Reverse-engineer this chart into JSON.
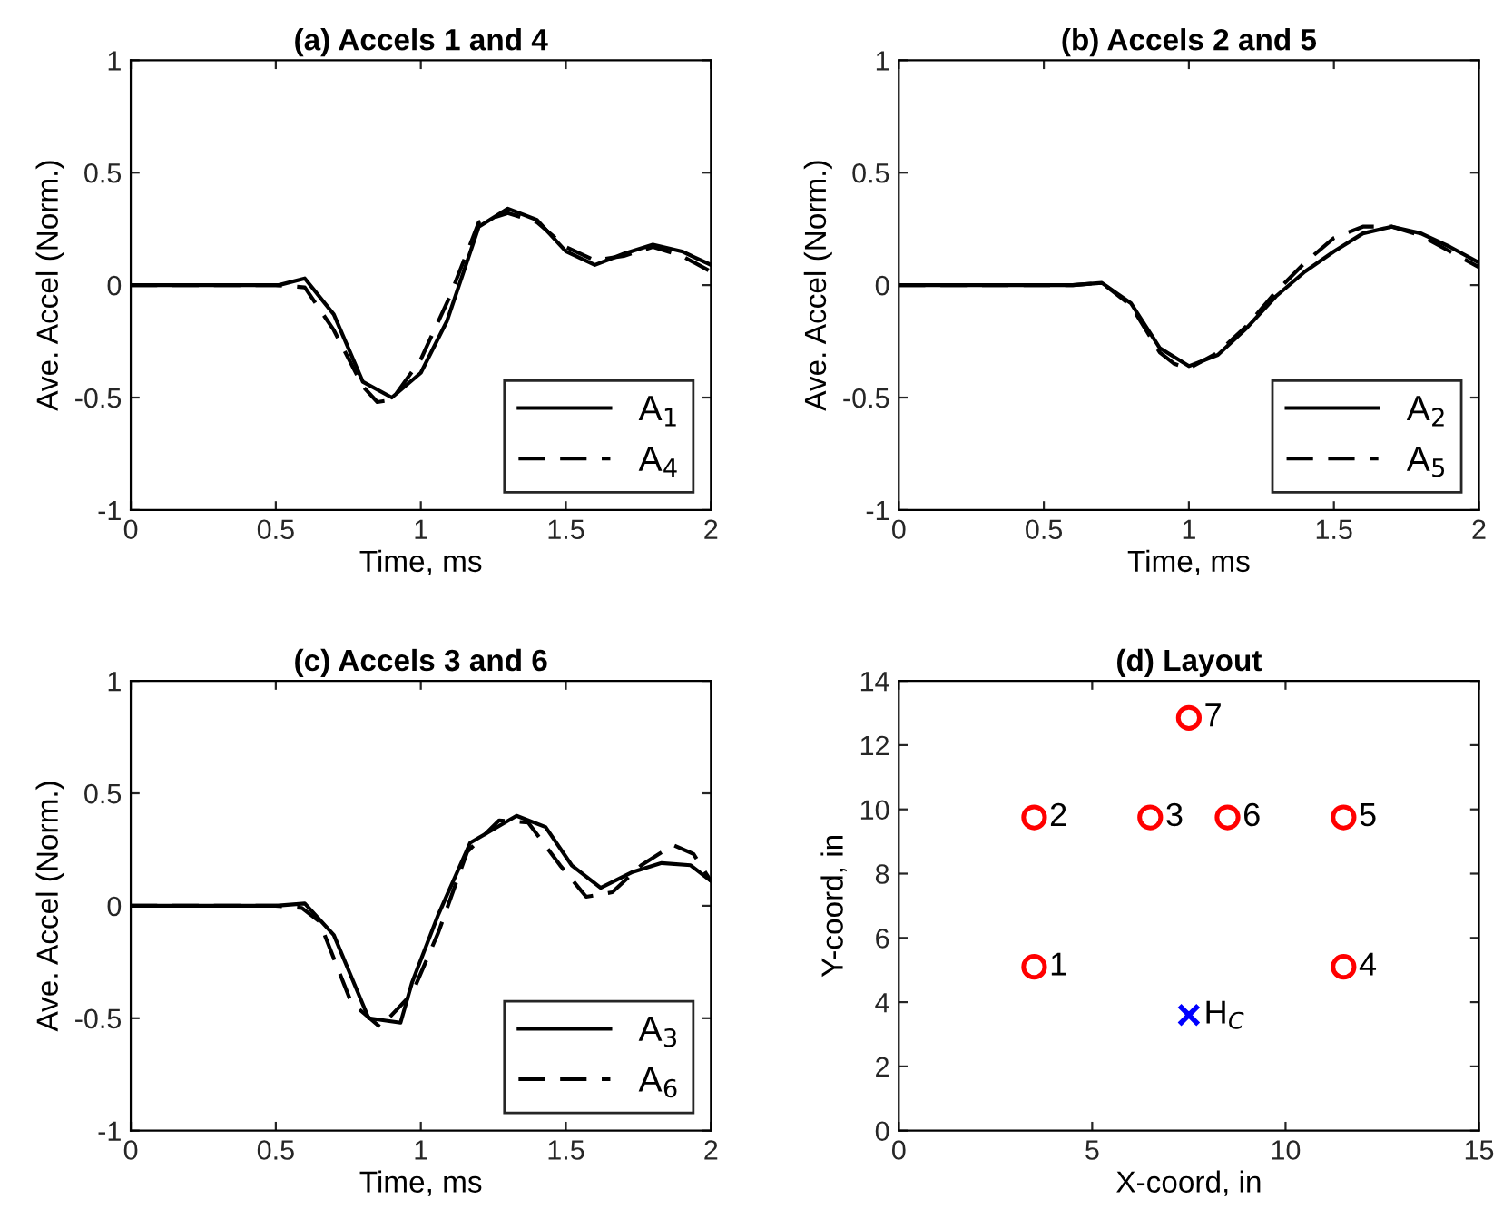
{
  "chart_data": [
    {
      "type": "line",
      "title": "(a) Accels 1 and 4",
      "xlabel": "Time, ms",
      "ylabel": "Ave. Accel (Norm.)",
      "xlim": [
        0,
        2
      ],
      "ylim": [
        -1,
        1
      ],
      "xticks": [
        0,
        0.5,
        1,
        1.5,
        2
      ],
      "yticks": [
        -1,
        -0.5,
        0,
        0.5,
        1
      ],
      "grid": false,
      "legend": "bottom right",
      "marker": "none",
      "series": [
        {
          "name": "A$_{1}$",
          "color": "#000000",
          "line_style": "solid",
          "x": [
            0,
            0.5,
            0.51,
            0.6,
            0.7,
            0.8,
            0.9,
            1.0,
            1.09,
            1.2,
            1.3,
            1.4,
            1.5,
            1.6,
            1.7,
            1.8,
            1.9,
            2.0
          ],
          "values": [
            0,
            0,
            0,
            0.03,
            -0.13,
            -0.43,
            -0.5,
            -0.39,
            -0.16,
            0.26,
            0.34,
            0.29,
            0.15,
            0.09,
            0.14,
            0.18,
            0.15,
            0.09
          ]
        },
        {
          "name": "A$_{4}$",
          "color": "#000000",
          "line_style": "dashed",
          "x": [
            0,
            0.5,
            0.6,
            0.7,
            0.8,
            0.85,
            0.9,
            1.0,
            1.1,
            1.2,
            1.3,
            1.4,
            1.5,
            1.6,
            1.7,
            1.8,
            1.9,
            2.0
          ],
          "values": [
            0,
            0,
            -0.01,
            -0.2,
            -0.45,
            -0.52,
            -0.51,
            -0.33,
            -0.05,
            0.28,
            0.32,
            0.28,
            0.17,
            0.11,
            0.13,
            0.17,
            0.13,
            0.06
          ]
        }
      ]
    },
    {
      "type": "line",
      "title": "(b) Accels 2 and 5",
      "xlabel": "Time, ms",
      "ylabel": "Ave. Accel (Norm.)",
      "xlim": [
        0,
        2
      ],
      "ylim": [
        -1,
        1
      ],
      "xticks": [
        0,
        0.5,
        1,
        1.5,
        2
      ],
      "yticks": [
        -1,
        -0.5,
        0,
        0.5,
        1
      ],
      "grid": false,
      "legend": "bottom right",
      "marker": "none",
      "series": [
        {
          "name": "A$_{2}$",
          "color": "#000000",
          "line_style": "solid",
          "x": [
            0,
            0.6,
            0.7,
            0.8,
            0.9,
            1.0,
            1.1,
            1.2,
            1.3,
            1.4,
            1.5,
            1.6,
            1.7,
            1.8,
            1.9,
            2.0
          ],
          "values": [
            0,
            0,
            0.01,
            -0.08,
            -0.28,
            -0.36,
            -0.31,
            -0.19,
            -0.05,
            0.06,
            0.15,
            0.23,
            0.26,
            0.23,
            0.17,
            0.1
          ]
        },
        {
          "name": "A$_{5}$",
          "color": "#000000",
          "line_style": "dashed",
          "x": [
            0,
            0.6,
            0.7,
            0.8,
            0.9,
            0.95,
            1.0,
            1.1,
            1.2,
            1.3,
            1.4,
            1.5,
            1.6,
            1.7,
            1.8,
            1.9,
            2.0
          ],
          "values": [
            0,
            0,
            0.01,
            -0.09,
            -0.3,
            -0.35,
            -0.37,
            -0.3,
            -0.18,
            -0.03,
            0.1,
            0.21,
            0.26,
            0.26,
            0.22,
            0.15,
            0.08
          ]
        }
      ]
    },
    {
      "type": "line",
      "title": "(c) Accels 3 and 6",
      "xlabel": "Time, ms",
      "ylabel": "Ave. Accel (Norm.)",
      "xlim": [
        0,
        2
      ],
      "ylim": [
        -1,
        1
      ],
      "xticks": [
        0,
        0.5,
        1,
        1.5,
        2
      ],
      "yticks": [
        -1,
        -0.5,
        0,
        0.5,
        1
      ],
      "grid": false,
      "legend": "bottom right",
      "marker": "none",
      "series": [
        {
          "name": "A$_{3}$",
          "color": "#000000",
          "line_style": "solid",
          "x": [
            0,
            0.5,
            0.6,
            0.7,
            0.82,
            0.93,
            0.97,
            1.06,
            1.17,
            1.33,
            1.43,
            1.52,
            1.62,
            1.73,
            1.83,
            1.93,
            2.0
          ],
          "values": [
            0,
            0,
            0.01,
            -0.13,
            -0.5,
            -0.52,
            -0.34,
            -0.04,
            0.28,
            0.4,
            0.35,
            0.18,
            0.08,
            0.15,
            0.19,
            0.18,
            0.11
          ]
        },
        {
          "name": "A$_{6}$",
          "color": "#000000",
          "line_style": "dashed",
          "x": [
            0,
            0.5,
            0.59,
            0.65,
            0.76,
            0.86,
            0.97,
            1.06,
            1.16,
            1.27,
            1.37,
            1.48,
            1.57,
            1.66,
            1.76,
            1.87,
            1.94,
            2.0
          ],
          "values": [
            0,
            0,
            -0.01,
            -0.07,
            -0.43,
            -0.54,
            -0.39,
            -0.12,
            0.24,
            0.38,
            0.37,
            0.18,
            0.04,
            0.06,
            0.18,
            0.27,
            0.23,
            0.11
          ]
        }
      ]
    },
    {
      "type": "scatter",
      "title": "(d) Layout",
      "xlabel": "X-coord, in",
      "ylabel": "Y-coord, in",
      "xlim": [
        0,
        15
      ],
      "ylim": [
        0,
        14
      ],
      "xticks": [
        0,
        5,
        10,
        15
      ],
      "yticks": [
        0,
        2,
        4,
        6,
        8,
        10,
        12,
        14
      ],
      "grid": false,
      "legend": false,
      "series": [
        {
          "color": "#ff0000",
          "marker": "circle",
          "x": [
            3.5,
            3.5,
            6.5,
            11.5,
            11.5,
            8.5,
            7.5
          ],
          "values": [
            5.1,
            9.75,
            9.75,
            5.1,
            9.75,
            9.75,
            12.85
          ]
        },
        {
          "color": "#0000ff",
          "marker": "cross",
          "x": [
            7.5
          ],
          "values": [
            3.6
          ]
        }
      ],
      "annotations": [
        {
          "text": "1",
          "x": 3.5,
          "y": 5.1
        },
        {
          "text": "2",
          "x": 3.5,
          "y": 9.75
        },
        {
          "text": "3",
          "x": 6.5,
          "y": 9.75
        },
        {
          "text": "4",
          "x": 11.5,
          "y": 5.1
        },
        {
          "text": "5",
          "x": 11.5,
          "y": 9.75
        },
        {
          "text": "6",
          "x": 8.5,
          "y": 9.75
        },
        {
          "text": "7",
          "x": 7.5,
          "y": 12.85
        },
        {
          "text": "H$_{C}$",
          "x": 7.5,
          "y": 3.6
        }
      ]
    }
  ]
}
